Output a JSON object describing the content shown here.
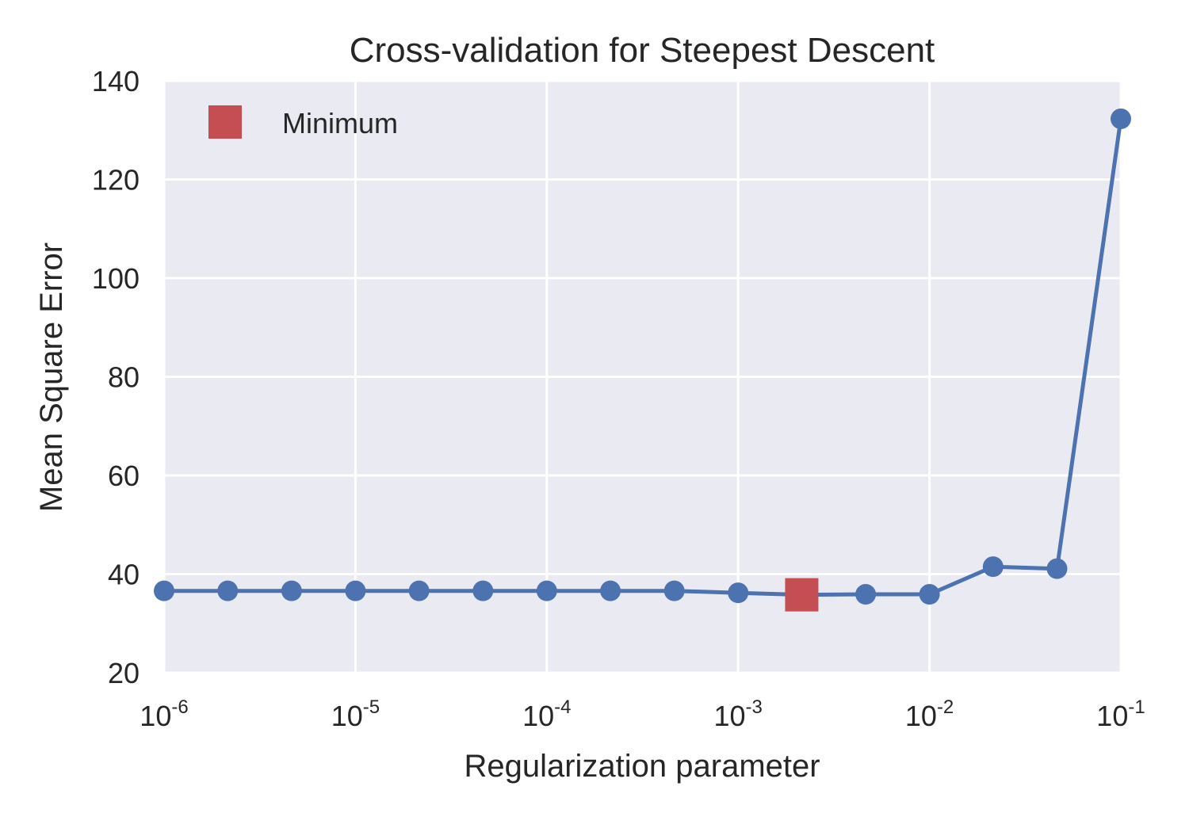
{
  "chart_data": {
    "type": "line",
    "title": "Cross-validation for Steepest Descent",
    "xlabel": "Regularization parameter",
    "ylabel": "Mean Square Error",
    "xscale": "log",
    "xlim": [
      1e-06,
      0.1
    ],
    "ylim": [
      20,
      140
    ],
    "grid": true,
    "x_ticks": [
      {
        "base": "10",
        "exp": "-6",
        "value": 1e-06
      },
      {
        "base": "10",
        "exp": "-5",
        "value": 1e-05
      },
      {
        "base": "10",
        "exp": "-4",
        "value": 0.0001
      },
      {
        "base": "10",
        "exp": "-3",
        "value": 0.001
      },
      {
        "base": "10",
        "exp": "-2",
        "value": 0.01
      },
      {
        "base": "10",
        "exp": "-1",
        "value": 0.1
      }
    ],
    "y_ticks": [
      {
        "label": "20",
        "value": 20
      },
      {
        "label": "40",
        "value": 40
      },
      {
        "label": "60",
        "value": 60
      },
      {
        "label": "80",
        "value": 80
      },
      {
        "label": "100",
        "value": 100
      },
      {
        "label": "120",
        "value": 120
      },
      {
        "label": "140",
        "value": 140
      }
    ],
    "series": [
      {
        "color": "#4c72b0",
        "marker": "circle",
        "x": [
          1e-06,
          2.15e-06,
          4.64e-06,
          1e-05,
          2.15e-05,
          4.64e-05,
          0.0001,
          0.000215,
          0.000464,
          0.001,
          0.00215,
          0.00464,
          0.01,
          0.0215,
          0.0464,
          0.1
        ],
        "y": [
          36.6,
          36.6,
          36.6,
          36.6,
          36.6,
          36.6,
          36.6,
          36.6,
          36.6,
          36.2,
          35.8,
          35.9,
          35.9,
          41.5,
          41.1,
          132.3
        ]
      }
    ],
    "minimum": {
      "name": "Minimum",
      "color": "#c44e52",
      "marker": "square",
      "x": 0.00215,
      "y": 35.8
    },
    "legend": {
      "location": "upper-left",
      "label": "Minimum"
    }
  }
}
